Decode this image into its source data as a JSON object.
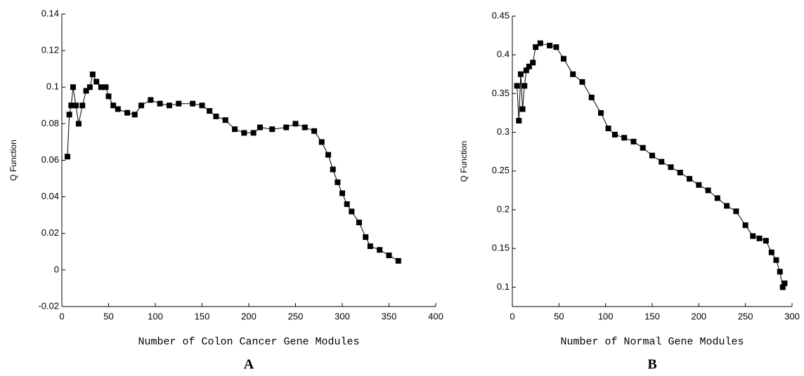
{
  "chart_data": [
    {
      "type": "line",
      "marker": "square",
      "color": "#000000",
      "xlabel": "Number of Colon Cancer Gene Modules",
      "ylabel": "Q Function",
      "label": "A",
      "xlim": [
        0,
        400
      ],
      "ylim": [
        -0.02,
        0.14
      ],
      "xticks": [
        0,
        50,
        100,
        150,
        200,
        250,
        300,
        350,
        400
      ],
      "yticks": [
        -0.02,
        0,
        0.02,
        0.04,
        0.06,
        0.08,
        0.1,
        0.12,
        0.14
      ],
      "x": [
        6,
        8,
        10,
        12,
        15,
        18,
        22,
        26,
        30,
        33,
        37,
        42,
        47,
        50,
        55,
        60,
        70,
        78,
        85,
        95,
        105,
        115,
        125,
        140,
        150,
        158,
        165,
        175,
        185,
        195,
        205,
        212,
        225,
        240,
        250,
        260,
        270,
        278,
        285,
        290,
        295,
        300,
        305,
        310,
        318,
        325,
        330,
        340,
        350,
        360
      ],
      "series": [
        {
          "values": [
            0.062,
            0.085,
            0.09,
            0.1,
            0.09,
            0.08,
            0.09,
            0.098,
            0.1,
            0.107,
            0.103,
            0.1,
            0.1,
            0.095,
            0.09,
            0.088,
            0.086,
            0.085,
            0.09,
            0.093,
            0.091,
            0.09,
            0.091,
            0.091,
            0.09,
            0.087,
            0.084,
            0.082,
            0.077,
            0.075,
            0.075,
            0.078,
            0.077,
            0.078,
            0.08,
            0.078,
            0.076,
            0.07,
            0.063,
            0.055,
            0.048,
            0.042,
            0.036,
            0.032,
            0.026,
            0.018,
            0.013,
            0.011,
            0.008,
            0.005
          ]
        }
      ]
    },
    {
      "type": "line",
      "marker": "square",
      "color": "#000000",
      "xlabel": "Number of Normal Gene Modules",
      "ylabel": "Q Function",
      "label": "B",
      "xlim": [
        0,
        300
      ],
      "ylim": [
        0.075,
        0.45
      ],
      "xticks": [
        0,
        50,
        100,
        150,
        200,
        250,
        300
      ],
      "yticks": [
        0.1,
        0.15,
        0.2,
        0.25,
        0.3,
        0.35,
        0.4,
        0.45
      ],
      "x": [
        5,
        7,
        9,
        11,
        13,
        15,
        18,
        22,
        25,
        30,
        40,
        47,
        55,
        65,
        75,
        85,
        95,
        103,
        110,
        120,
        130,
        140,
        150,
        160,
        170,
        180,
        190,
        200,
        210,
        220,
        230,
        240,
        250,
        258,
        265,
        272,
        278,
        283,
        287,
        290,
        292
      ],
      "series": [
        {
          "values": [
            0.36,
            0.315,
            0.375,
            0.33,
            0.36,
            0.38,
            0.385,
            0.39,
            0.41,
            0.415,
            0.412,
            0.41,
            0.395,
            0.375,
            0.365,
            0.345,
            0.325,
            0.305,
            0.297,
            0.293,
            0.288,
            0.28,
            0.27,
            0.262,
            0.255,
            0.248,
            0.24,
            0.232,
            0.225,
            0.215,
            0.205,
            0.198,
            0.18,
            0.166,
            0.163,
            0.16,
            0.145,
            0.135,
            0.12,
            0.1,
            0.105
          ]
        }
      ]
    }
  ]
}
